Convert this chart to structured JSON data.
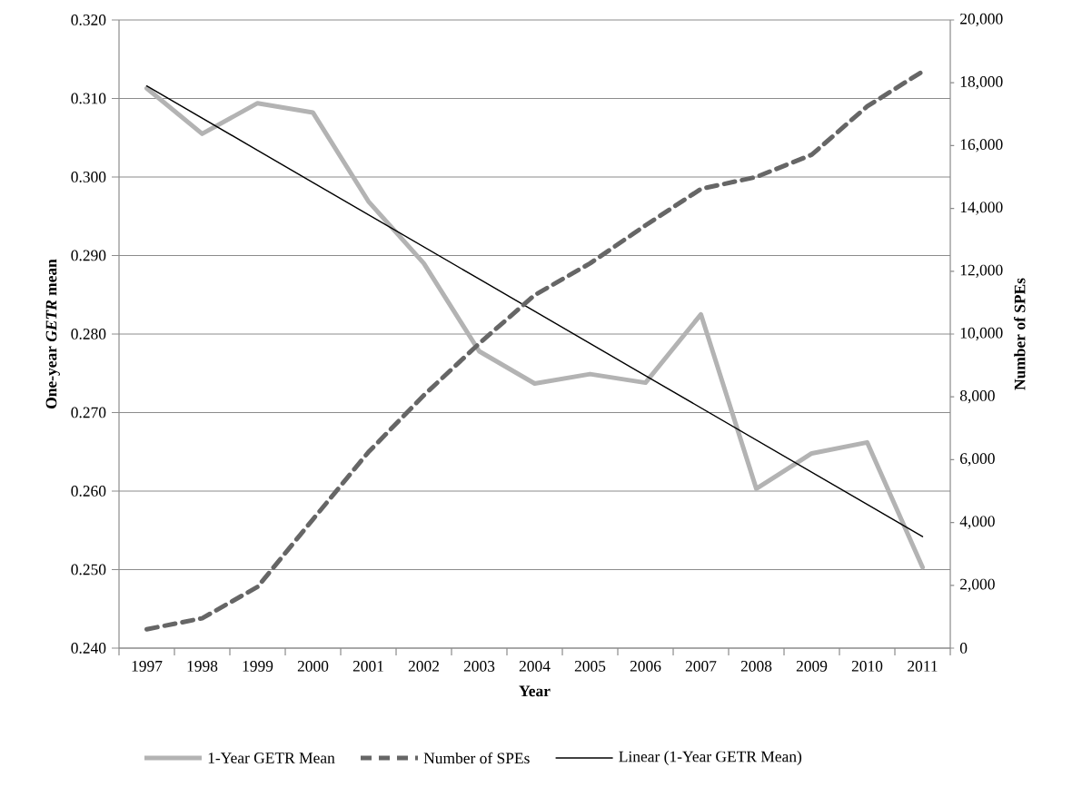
{
  "chart_data": {
    "type": "line",
    "categories": [
      "1997",
      "1998",
      "1999",
      "2000",
      "2001",
      "2002",
      "2003",
      "2004",
      "2005",
      "2006",
      "2007",
      "2008",
      "2009",
      "2010",
      "2011"
    ],
    "xlabel": "Year",
    "ylabel": "One-year *GETR* mean",
    "y2label": "Number of SPEs",
    "ylim": [
      0.24,
      0.32
    ],
    "yticks": [
      {
        "value": 0.24,
        "label": "0.240"
      },
      {
        "value": 0.25,
        "label": "0.250"
      },
      {
        "value": 0.26,
        "label": "0.260"
      },
      {
        "value": 0.27,
        "label": "0.270"
      },
      {
        "value": 0.28,
        "label": "0.280"
      },
      {
        "value": 0.29,
        "label": "0.290"
      },
      {
        "value": 0.3,
        "label": "0.300"
      },
      {
        "value": 0.31,
        "label": "0.310"
      },
      {
        "value": 0.32,
        "label": "0.320"
      }
    ],
    "y2lim": [
      0,
      20000
    ],
    "y2ticks": [
      0,
      {
        "value": 2000,
        "label": "2,000"
      },
      {
        "value": 4000,
        "label": "4,000"
      },
      {
        "value": 6000,
        "label": "6,000"
      },
      {
        "value": 8000,
        "label": "8,000"
      },
      {
        "value": 10000,
        "label": "10,000"
      },
      {
        "value": 12000,
        "label": "12,000"
      },
      {
        "value": 14000,
        "label": "14,000"
      },
      {
        "value": 16000,
        "label": "16,000"
      },
      {
        "value": 18000,
        "label": "18,000"
      },
      {
        "value": 20000,
        "label": "20,000"
      }
    ],
    "grid": "y",
    "legend": "bottom",
    "series": [
      {
        "name": "1-Year GETR Mean",
        "color": "#b3b3b3",
        "line_style": "solid",
        "values": [
          0.3113,
          0.3055,
          0.3094,
          0.3082,
          0.2969,
          0.289,
          0.2778,
          0.2737,
          0.2749,
          0.2738,
          0.2825,
          0.2603,
          0.2648,
          0.2662,
          0.2503
        ]
      },
      {
        "name": "Number of SPEs",
        "color": "#666666",
        "line_style": "dashed",
        "axis": "y2",
        "values": [
          600,
          950,
          1950,
          4100,
          6240,
          8050,
          9700,
          11240,
          12250,
          13460,
          14620,
          15000,
          15710,
          17250,
          18360
        ]
      },
      {
        "name": "Linear (1-Year GETR Mean)",
        "color": "#000000",
        "line_style": "solid",
        "values": [
          0.3116,
          0.3075,
          0.3034,
          0.2993,
          0.2952,
          0.2911,
          0.287,
          0.2829,
          0.2788,
          0.2747,
          0.2706,
          0.2665,
          0.2624,
          0.2583,
          0.2542
        ]
      }
    ]
  }
}
